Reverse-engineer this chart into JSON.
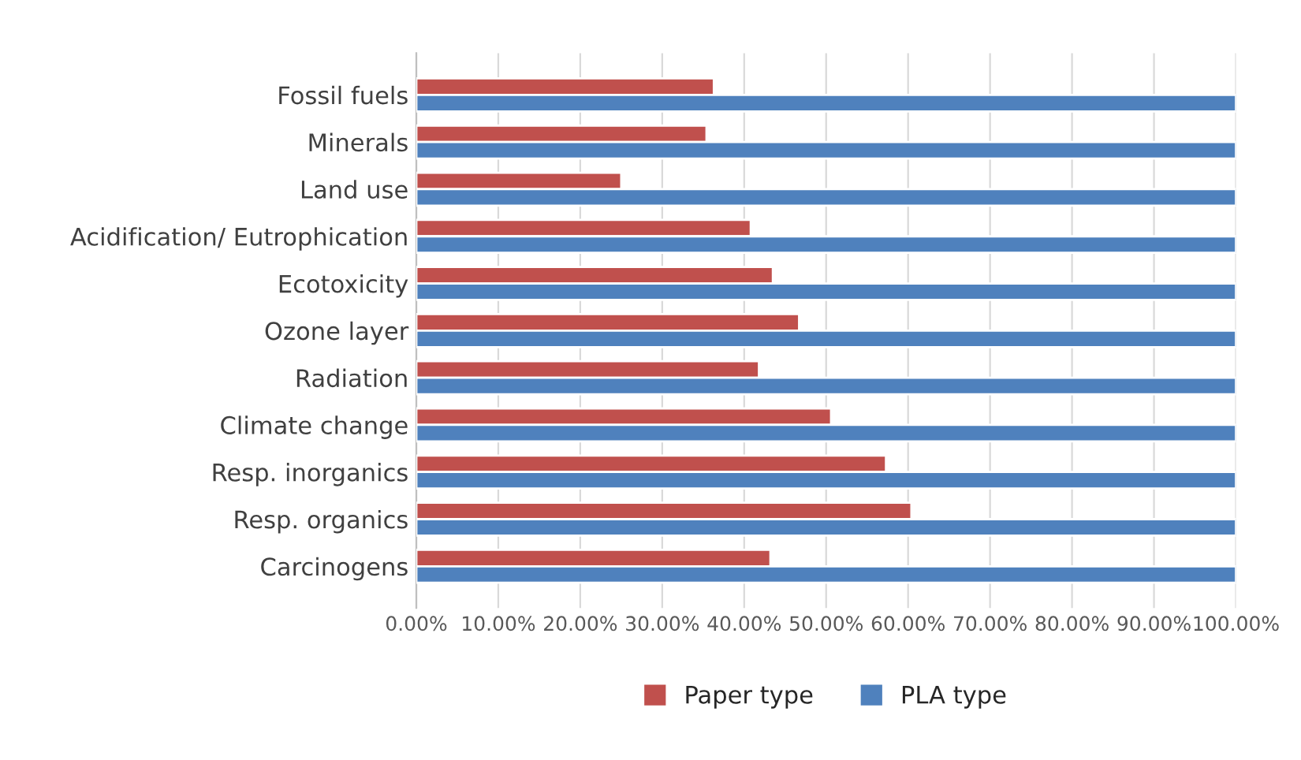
{
  "chart_data": {
    "type": "bar",
    "orientation": "horizontal",
    "categories": [
      "Fossil fuels",
      "Minerals",
      "Land use",
      "Acidification/ Eutrophication",
      "Ecotoxicity",
      "Ozone layer",
      "Radiation",
      "Climate change",
      "Resp. inorganics",
      "Resp. organics",
      "Carcinogens"
    ],
    "series": [
      {
        "name": "Paper type",
        "color": "#c0504d",
        "values": [
          36.3,
          35.4,
          25.0,
          40.8,
          43.5,
          46.7,
          41.8,
          50.6,
          57.3,
          60.4,
          43.2
        ]
      },
      {
        "name": "PLA type",
        "color": "#4f81bd",
        "values": [
          100,
          100,
          100,
          100,
          100,
          100,
          100,
          100,
          100,
          100,
          100
        ]
      }
    ],
    "xlim": [
      0,
      100
    ],
    "xticks": [
      {
        "value": 0,
        "label": "0.00%"
      },
      {
        "value": 10,
        "label": "10.00%"
      },
      {
        "value": 20,
        "label": "20.00%"
      },
      {
        "value": 30,
        "label": "30.00%"
      },
      {
        "value": 40,
        "label": "40.00%"
      },
      {
        "value": 50,
        "label": "50.00%"
      },
      {
        "value": 60,
        "label": "60.00%"
      },
      {
        "value": 70,
        "label": "70.00%"
      },
      {
        "value": 80,
        "label": "80.00%"
      },
      {
        "value": 90,
        "label": "90.00%"
      },
      {
        "value": 100,
        "label": "100.00%"
      }
    ],
    "grid": "x",
    "legend": "bottom"
  }
}
